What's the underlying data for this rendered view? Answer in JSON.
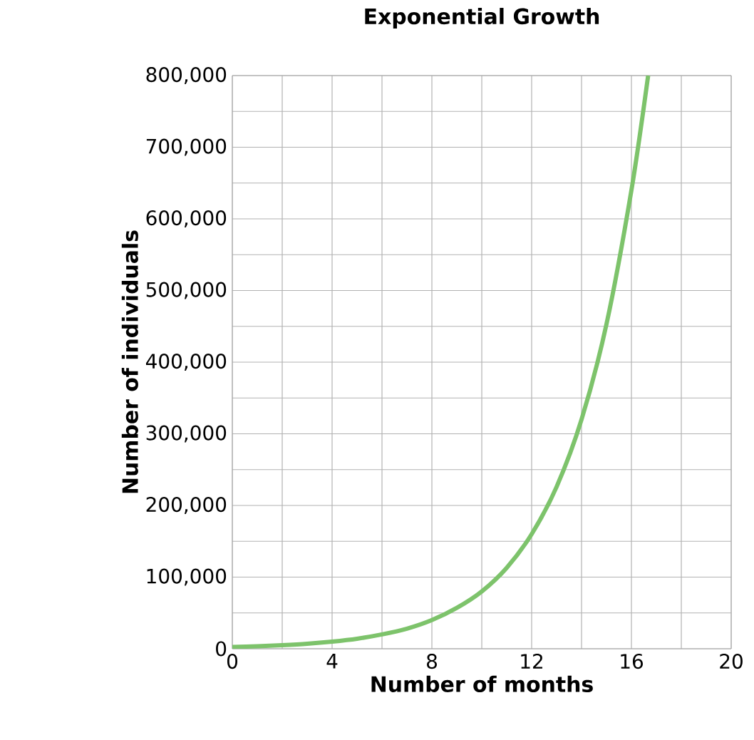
{
  "chart_data": {
    "type": "line",
    "title": "Exponential Growth",
    "xlabel": "Number of months",
    "ylabel": "Number of individuals",
    "x": [
      0,
      1,
      2,
      3,
      4,
      5,
      6,
      7,
      8,
      9,
      10,
      11,
      12,
      13,
      14,
      15,
      16,
      16.67
    ],
    "series": [
      {
        "color": "#7dc36b",
        "values": [
          2500,
          3500,
          5000,
          7000,
          10000,
          14000,
          20000,
          28000,
          40000,
          57000,
          80000,
          113000,
          160000,
          226000,
          320000,
          453000,
          640000,
          800000
        ]
      }
    ],
    "xlim": [
      0,
      20
    ],
    "ylim": [
      0,
      800000
    ],
    "xticks": [
      0,
      {
        "value": 2,
        "label": null
      },
      4,
      {
        "value": 6,
        "label": null
      },
      8,
      {
        "value": 10,
        "label": null
      },
      12,
      {
        "value": 14,
        "label": null
      },
      16,
      {
        "value": 18,
        "label": null
      },
      20
    ],
    "yticks": [
      {
        "value": 0,
        "label": "0"
      },
      {
        "value": 50000,
        "label": null
      },
      {
        "value": 100000,
        "label": "100,000"
      },
      {
        "value": 150000,
        "label": null
      },
      {
        "value": 200000,
        "label": "200,000"
      },
      {
        "value": 250000,
        "label": null
      },
      {
        "value": 300000,
        "label": "300,000"
      },
      {
        "value": 350000,
        "label": null
      },
      {
        "value": 400000,
        "label": "400,000"
      },
      {
        "value": 450000,
        "label": null
      },
      {
        "value": 500000,
        "label": "500,000"
      },
      {
        "value": 550000,
        "label": null
      },
      {
        "value": 600000,
        "label": "600,000"
      },
      {
        "value": 650000,
        "label": null
      },
      {
        "value": 700000,
        "label": "700,000"
      },
      {
        "value": 750000,
        "label": null
      },
      {
        "value": 800000,
        "label": "800,000"
      }
    ],
    "grid": true,
    "marker": "none",
    "line_style": "solid"
  }
}
